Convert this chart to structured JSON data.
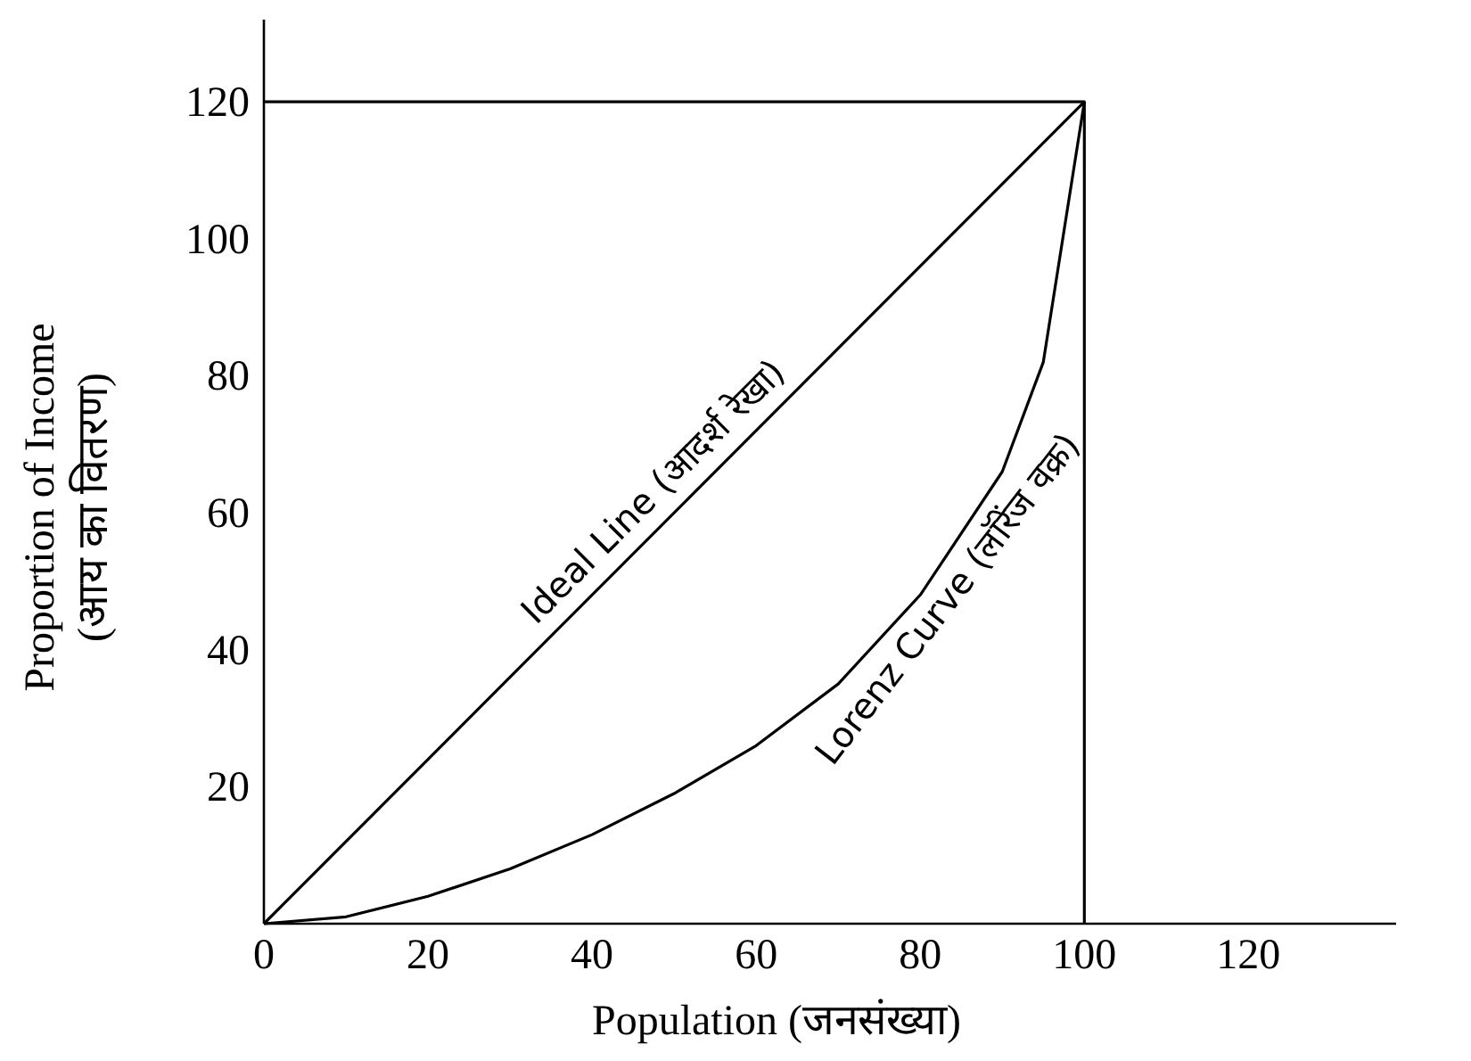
{
  "chart_data": {
    "type": "line",
    "xlabel": "Population (जनसंख्या)",
    "ylabel": "Proportion of Income\n(आय का वितरण)",
    "xlim": [
      0,
      138
    ],
    "ylim": [
      0,
      132
    ],
    "xticks": [
      0,
      20,
      40,
      60,
      80,
      100,
      120
    ],
    "yticks": [
      20,
      40,
      60,
      80,
      100,
      120
    ],
    "grid": false,
    "marker": "none",
    "line_style": "solid",
    "series": [
      {
        "name": "Ideal Line (आदर्श रेखा)",
        "color": "#000000",
        "x": [
          0,
          100
        ],
        "values": [
          0,
          120
        ]
      },
      {
        "name": "Lorenz Curve  (लॉरेंज वक्र)",
        "color": "#000000",
        "x": [
          0,
          10,
          20,
          30,
          40,
          50,
          60,
          70,
          80,
          90,
          95,
          100
        ],
        "values": [
          0,
          1,
          4,
          8,
          13,
          19,
          26,
          35,
          48,
          66,
          82,
          120
        ]
      },
      {
        "color": "#000000",
        "x": [
          0,
          100,
          100
        ],
        "values": [
          120,
          120,
          0
        ]
      }
    ]
  }
}
